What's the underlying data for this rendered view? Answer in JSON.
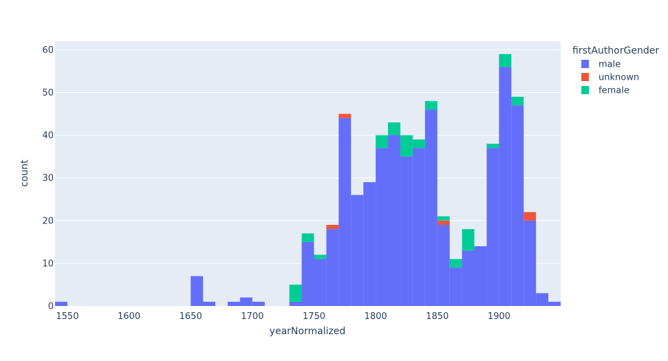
{
  "chart_data": {
    "type": "bar",
    "stacked": true,
    "xlabel": "yearNormalized",
    "ylabel": "count",
    "x_range": [
      1540,
      1950
    ],
    "ylim": [
      0,
      62
    ],
    "x_ticks": [
      1550,
      1600,
      1650,
      1700,
      1750,
      1800,
      1850,
      1900
    ],
    "y_ticks": [
      0,
      10,
      20,
      30,
      40,
      50,
      60
    ],
    "bin_width": 10,
    "bin_starts": [
      1540,
      1650,
      1660,
      1680,
      1690,
      1700,
      1730,
      1740,
      1750,
      1760,
      1770,
      1780,
      1790,
      1800,
      1810,
      1820,
      1830,
      1840,
      1850,
      1860,
      1870,
      1880,
      1890,
      1900,
      1910,
      1920,
      1930,
      1940
    ],
    "legend": {
      "title": "firstAuthorGender",
      "position": "top-right"
    },
    "grid": true,
    "series": [
      {
        "name": "male",
        "color": "#636efa",
        "values": [
          1,
          7,
          1,
          1,
          2,
          1,
          1,
          15,
          11,
          18,
          44,
          26,
          29,
          37,
          40,
          35,
          37,
          46,
          19,
          9,
          13,
          14,
          37,
          56,
          47,
          20,
          3,
          1
        ]
      },
      {
        "name": "unknown",
        "color": "#ef553b",
        "values": [
          0,
          0,
          0,
          0,
          0,
          0,
          0,
          0,
          0,
          1,
          1,
          0,
          0,
          0,
          0,
          0,
          0,
          0,
          1,
          0,
          0,
          0,
          0,
          0,
          0,
          2,
          0,
          0
        ]
      },
      {
        "name": "female",
        "color": "#00cc96",
        "values": [
          0,
          0,
          0,
          0,
          0,
          0,
          4,
          2,
          1,
          0,
          0,
          0,
          0,
          3,
          3,
          5,
          2,
          2,
          1,
          2,
          5,
          0,
          1,
          3,
          2,
          0,
          0,
          0
        ]
      }
    ]
  }
}
